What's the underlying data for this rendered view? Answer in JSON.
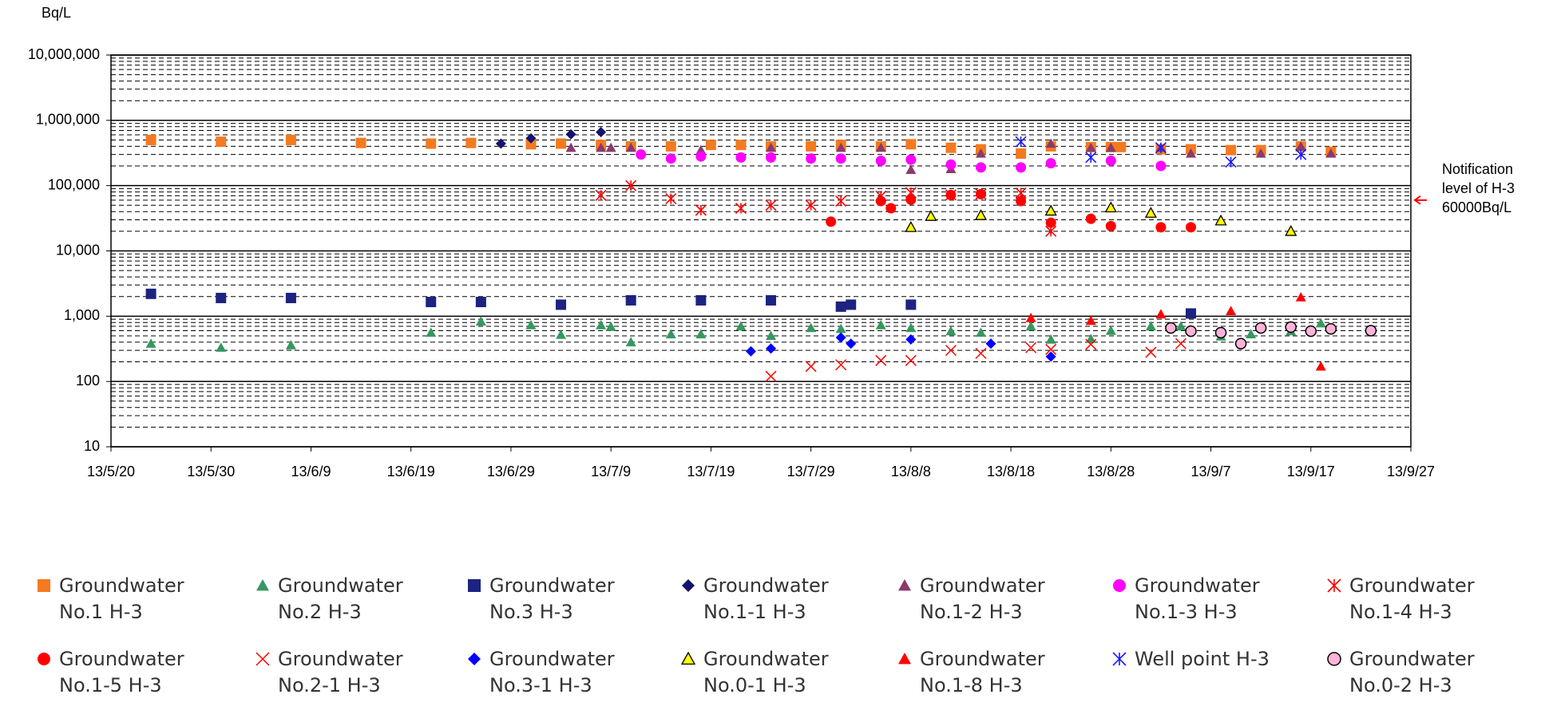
{
  "chart_data": {
    "type": "scatter",
    "y_label": "Bq/L",
    "log_y": true,
    "grid": true,
    "xlim": [
      "13/5/20",
      "13/9/27"
    ],
    "xticks": [
      "13/5/20",
      "13/5/30",
      "13/6/9",
      "13/6/19",
      "13/6/29",
      "13/7/9",
      "13/7/19",
      "13/7/29",
      "13/8/8",
      "13/8/18",
      "13/8/28",
      "13/9/7",
      "13/9/17",
      "13/9/27"
    ],
    "ylim": [
      10,
      10000000
    ],
    "yticks": [
      10,
      100,
      {
        "value": 1000,
        "label": "1,000"
      },
      {
        "value": 10000,
        "label": "10,000"
      },
      {
        "value": 100000,
        "label": "100,000"
      },
      {
        "value": 1000000,
        "label": "1,000,000"
      },
      {
        "value": 10000000,
        "label": "10,000,000"
      }
    ],
    "annotation": {
      "text": "Notification level of H-3 60000Bq/L",
      "value": 60000,
      "color": "#ff0000"
    },
    "series": [
      {
        "name": "Groundwater No.1 H-3",
        "color": "#f47a20",
        "marker": "square",
        "x": [
          "13/5/24",
          "13/5/31",
          "13/6/7",
          "13/6/14",
          "13/6/21",
          "13/6/25",
          "13/7/1",
          "13/7/4",
          "13/7/8",
          "13/7/11",
          "13/7/15",
          "13/7/19",
          "13/7/22",
          "13/7/25",
          "13/7/29",
          "13/8/1",
          "13/8/5",
          "13/8/8",
          "13/8/12",
          "13/8/15",
          "13/8/19",
          "13/8/22",
          "13/8/26",
          "13/8/28",
          "13/8/29",
          "13/9/2",
          "13/9/5",
          "13/9/9",
          "13/9/12",
          "13/9/16",
          "13/9/19"
        ],
        "values": [
          500000,
          470000,
          500000,
          450000,
          440000,
          450000,
          430000,
          440000,
          420000,
          400000,
          400000,
          420000,
          420000,
          400000,
          400000,
          420000,
          400000,
          430000,
          380000,
          360000,
          310000,
          400000,
          390000,
          390000,
          390000,
          360000,
          360000,
          350000,
          350000,
          400000,
          330000
        ]
      },
      {
        "name": "Groundwater No.2 H-3",
        "color": "#36985f",
        "marker": "triangle",
        "x": [
          "13/5/24",
          "13/5/31",
          "13/6/7",
          "13/6/21",
          "13/6/26",
          "13/7/1",
          "13/7/4",
          "13/7/8",
          "13/7/9",
          "13/7/11",
          "13/7/15",
          "13/7/18",
          "13/7/22",
          "13/7/25",
          "13/7/29",
          "13/8/1",
          "13/8/5",
          "13/8/8",
          "13/8/12",
          "13/8/15",
          "13/8/20",
          "13/8/22",
          "13/8/26",
          "13/8/28",
          "13/9/1",
          "13/9/4",
          "13/9/8",
          "13/9/11",
          "13/9/15",
          "13/9/18"
        ],
        "values": [
          380,
          330,
          360,
          560,
          830,
          730,
          520,
          730,
          690,
          400,
          530,
          530,
          700,
          500,
          660,
          640,
          730,
          660,
          590,
          560,
          700,
          440,
          450,
          600,
          700,
          700,
          490,
          530,
          590,
          780
        ]
      },
      {
        "name": "Groundwater No.3 H-3",
        "color": "#1c2380",
        "marker": "square",
        "x": [
          "13/5/24",
          "13/5/31",
          "13/6/7",
          "13/6/21",
          "13/6/26",
          "13/7/4",
          "13/7/11",
          "13/7/18",
          "13/7/25",
          "13/8/1",
          "13/8/2",
          "13/8/8",
          "13/9/5"
        ],
        "values": [
          2200,
          1900,
          1900,
          1650,
          1650,
          1500,
          1750,
          1750,
          1750,
          1400,
          1500,
          1500,
          1100
        ]
      },
      {
        "name": "Groundwater No.1-1 H-3",
        "color": "#14146e",
        "marker": "diamond",
        "x": [
          "13/6/28",
          "13/7/1",
          "13/7/5",
          "13/7/8"
        ],
        "values": [
          440000,
          530000,
          610000,
          660000
        ]
      },
      {
        "name": "Groundwater No.1-2 H-3",
        "color": "#8b3a6b",
        "marker": "triangle",
        "x": [
          "13/7/5",
          "13/7/8",
          "13/7/9",
          "13/7/11",
          "13/7/18",
          "13/7/25",
          "13/8/1",
          "13/8/5",
          "13/8/8",
          "13/8/12",
          "13/8/15",
          "13/8/22",
          "13/8/26",
          "13/8/28",
          "13/9/2",
          "13/9/5",
          "13/9/12",
          "13/9/16",
          "13/9/19"
        ],
        "values": [
          380000,
          380000,
          380000,
          380000,
          350000,
          380000,
          380000,
          380000,
          175000,
          180000,
          310000,
          440000,
          380000,
          380000,
          380000,
          310000,
          310000,
          400000,
          310000
        ]
      },
      {
        "name": "Groundwater No.1-3 H-3",
        "color": "#ff00ff",
        "marker": "circle",
        "x": [
          "13/7/12",
          "13/7/15",
          "13/7/18",
          "13/7/22",
          "13/7/25",
          "13/7/29",
          "13/8/1",
          "13/8/5",
          "13/8/8",
          "13/8/12",
          "13/8/15",
          "13/8/19",
          "13/8/22",
          "13/8/28",
          "13/9/2"
        ],
        "values": [
          300000,
          260000,
          280000,
          270000,
          270000,
          260000,
          260000,
          240000,
          250000,
          210000,
          190000,
          190000,
          220000,
          240000,
          200000
        ]
      },
      {
        "name": "Groundwater No.1-4 H-3",
        "color": "#ff0000",
        "marker": "asterisk",
        "x": [
          "13/7/8",
          "13/7/11",
          "13/7/15",
          "13/7/18",
          "13/7/22",
          "13/7/25",
          "13/7/29",
          "13/8/1",
          "13/8/5",
          "13/8/8",
          "13/8/12",
          "13/8/15",
          "13/8/19",
          "13/8/22"
        ],
        "values": [
          71000,
          100000,
          63000,
          42000,
          45000,
          50000,
          50000,
          58000,
          69000,
          78000,
          72000,
          74000,
          77000,
          20000
        ]
      },
      {
        "name": "Groundwater No.1-5 H-3",
        "color": "#ff0000",
        "marker": "circle",
        "x": [
          "13/7/31",
          "13/8/5",
          "13/8/6",
          "13/8/8",
          "13/8/12",
          "13/8/15",
          "13/8/19",
          "13/8/22",
          "13/8/26",
          "13/8/28",
          "13/9/2",
          "13/9/5"
        ],
        "values": [
          28000,
          58000,
          45000,
          61000,
          72000,
          74000,
          58000,
          27000,
          31000,
          24000,
          23000,
          23000
        ]
      },
      {
        "name": "Groundwater No.2-1 H-3",
        "color": "#ff0000",
        "marker": "x",
        "x": [
          "13/7/25",
          "13/7/29",
          "13/8/1",
          "13/8/5",
          "13/8/8",
          "13/8/12",
          "13/8/15",
          "13/8/20",
          "13/8/22",
          "13/8/26",
          "13/9/1",
          "13/9/4"
        ],
        "values": [
          120,
          170,
          180,
          210,
          210,
          300,
          270,
          330,
          310,
          370,
          280,
          380
        ]
      },
      {
        "name": "Groundwater No.3-1 H-3",
        "color": "#0000ff",
        "marker": "diamond",
        "x": [
          "13/7/23",
          "13/7/25",
          "13/8/1",
          "13/8/2",
          "13/8/8",
          "13/8/16",
          "13/8/22"
        ],
        "values": [
          290,
          320,
          470,
          380,
          440,
          380,
          240
        ]
      },
      {
        "name": "Groundwater No.0-1 H-3",
        "color": "#ffff00",
        "marker": "triangle-outline",
        "x": [
          "13/8/8",
          "13/8/10",
          "13/8/15",
          "13/8/22",
          "13/8/28",
          "13/9/1",
          "13/9/8",
          "13/9/15"
        ],
        "values": [
          23000,
          34000,
          35000,
          41000,
          46000,
          38000,
          29000,
          20000
        ]
      },
      {
        "name": "Groundwater No.1-8 H-3",
        "color": "#ff0000",
        "marker": "triangle",
        "x": [
          "13/8/20",
          "13/8/26",
          "13/9/2",
          "13/9/9",
          "13/9/16",
          "13/9/18"
        ],
        "values": [
          940,
          850,
          1070,
          1200,
          1950,
          170
        ]
      },
      {
        "name": "Well point H-3",
        "color": "#1a1aff",
        "marker": "asterisk",
        "x": [
          "13/8/19",
          "13/8/26",
          "13/9/2",
          "13/9/9",
          "13/9/16"
        ],
        "values": [
          470000,
          270000,
          380000,
          230000,
          300000
        ]
      },
      {
        "name": "Groundwater No.0-2 H-3",
        "color": "#ffb3d9",
        "marker": "circle-outline",
        "x": [
          "13/9/3",
          "13/9/5",
          "13/9/8",
          "13/9/10",
          "13/9/12",
          "13/9/15",
          "13/9/17",
          "13/9/19",
          "13/9/23"
        ],
        "values": [
          660,
          590,
          560,
          380,
          660,
          680,
          590,
          640,
          600
        ]
      }
    ]
  }
}
